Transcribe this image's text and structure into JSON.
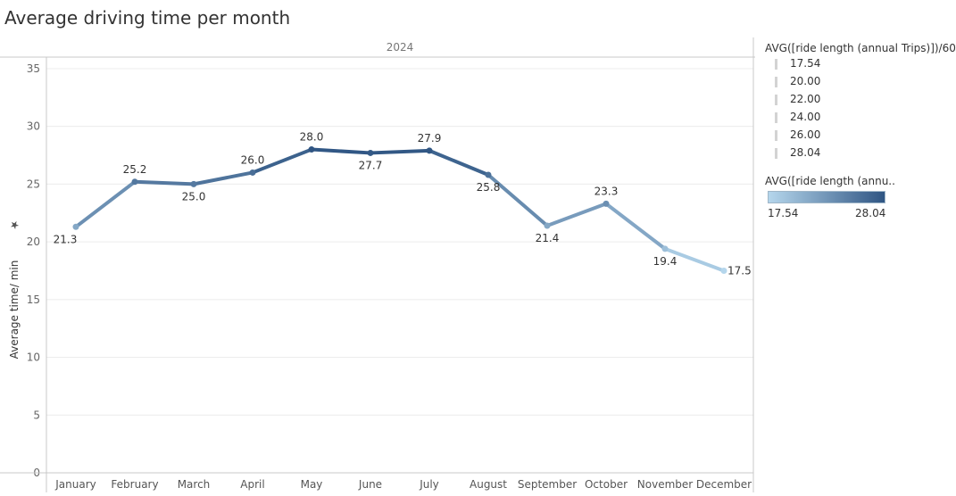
{
  "title": "Average driving time per month",
  "chart_data": {
    "type": "line",
    "title": "Average driving time per month",
    "header": "2024",
    "xlabel": "",
    "ylabel": "Average time/ min",
    "ylim": [
      0,
      36
    ],
    "yticks": [
      0,
      5,
      10,
      15,
      20,
      25,
      30,
      35
    ],
    "categories": [
      "January",
      "February",
      "March",
      "April",
      "May",
      "June",
      "July",
      "August",
      "September",
      "October",
      "November",
      "December"
    ],
    "values": [
      21.3,
      25.2,
      25.0,
      26.0,
      28.0,
      27.7,
      27.9,
      25.8,
      21.4,
      23.3,
      19.4,
      17.5
    ],
    "data_labels": [
      "21.3",
      "25.2",
      "25.0",
      "26.0",
      "28.0",
      "27.7",
      "27.9",
      "25.8",
      "21.4",
      "23.3",
      "19.4",
      "17.5"
    ],
    "grid": true,
    "color_range": [
      17.54,
      28.04
    ],
    "colors": {
      "low": "#b5d6ec",
      "high": "#2f5583",
      "grid": "#ececec",
      "axis": "#c8c8c8",
      "text": "#555555",
      "label": "#333333"
    }
  },
  "legend": {
    "size_title": "AVG([ride length (annual Trips)])/60",
    "size_items": [
      "17.54",
      "20.00",
      "22.00",
      "24.00",
      "26.00",
      "28.04"
    ],
    "color_title": "AVG([ride length (annu..",
    "color_min": "17.54",
    "color_max": "28.04"
  }
}
